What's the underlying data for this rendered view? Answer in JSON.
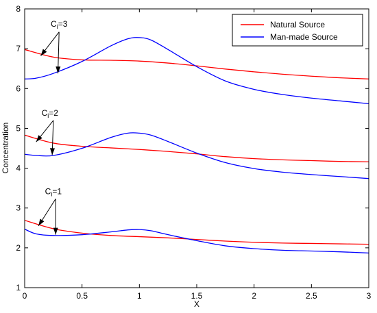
{
  "chart_data": {
    "type": "line",
    "title": "",
    "xlabel": "X",
    "ylabel": "Concentration",
    "xlim": [
      0,
      3
    ],
    "ylim": [
      1,
      8
    ],
    "xticks": [
      0,
      0.5,
      1,
      1.5,
      2,
      2.5,
      3
    ],
    "xtick_labels": [
      "0",
      "0.5",
      "1",
      "1.5",
      "2",
      "2.5",
      "3"
    ],
    "yticks": [
      1,
      2,
      3,
      4,
      5,
      6,
      7,
      8
    ],
    "ytick_labels": [
      "1",
      "2",
      "3",
      "4",
      "5",
      "6",
      "7",
      "8"
    ],
    "grid": false,
    "legend_position": "top-right",
    "legend": [
      {
        "label": "Natural Source",
        "color": "#ff0000"
      },
      {
        "label": "Man-made Source",
        "color": "#0000ff"
      }
    ],
    "series": [
      {
        "name": "Natural Source",
        "group": "Ci=3",
        "color": "#ff0000",
        "x": [
          0,
          0.25,
          0.5,
          0.75,
          1,
          1.25,
          1.5,
          1.75,
          2,
          2.25,
          2.5,
          2.75,
          3
        ],
        "y": [
          6.98,
          6.79,
          6.72,
          6.71,
          6.69,
          6.64,
          6.57,
          6.49,
          6.42,
          6.36,
          6.31,
          6.27,
          6.24
        ]
      },
      {
        "name": "Man-made Source",
        "group": "Ci=3",
        "color": "#0000ff",
        "x": [
          0,
          0.1,
          0.25,
          0.5,
          0.75,
          0.9,
          1,
          1.1,
          1.25,
          1.5,
          1.75,
          2,
          2.25,
          2.5,
          2.75,
          3
        ],
        "y": [
          6.24,
          6.26,
          6.38,
          6.68,
          7.07,
          7.25,
          7.28,
          7.22,
          6.98,
          6.55,
          6.19,
          5.98,
          5.85,
          5.76,
          5.69,
          5.62
        ]
      },
      {
        "name": "Natural Source",
        "group": "Ci=2",
        "color": "#ff0000",
        "x": [
          0,
          0.25,
          0.5,
          0.75,
          1,
          1.25,
          1.5,
          1.75,
          2,
          2.25,
          2.5,
          2.75,
          3
        ],
        "y": [
          4.83,
          4.63,
          4.55,
          4.51,
          4.47,
          4.42,
          4.36,
          4.29,
          4.24,
          4.21,
          4.19,
          4.17,
          4.16
        ]
      },
      {
        "name": "Man-made Source",
        "group": "Ci=2",
        "color": "#0000ff",
        "x": [
          0,
          0.1,
          0.25,
          0.5,
          0.75,
          0.9,
          1,
          1.1,
          1.25,
          1.5,
          1.75,
          2,
          2.25,
          2.5,
          2.75,
          3
        ],
        "y": [
          4.35,
          4.32,
          4.32,
          4.5,
          4.77,
          4.88,
          4.88,
          4.83,
          4.67,
          4.38,
          4.14,
          3.99,
          3.9,
          3.84,
          3.79,
          3.74
        ]
      },
      {
        "name": "Natural Source",
        "group": "Ci=1",
        "color": "#ff0000",
        "x": [
          0,
          0.25,
          0.5,
          0.75,
          1,
          1.25,
          1.5,
          1.75,
          2,
          2.25,
          2.5,
          2.75,
          3
        ],
        "y": [
          2.69,
          2.48,
          2.37,
          2.31,
          2.28,
          2.25,
          2.21,
          2.17,
          2.14,
          2.12,
          2.11,
          2.1,
          2.09
        ]
      },
      {
        "name": "Man-made Source",
        "group": "Ci=1",
        "color": "#0000ff",
        "x": [
          0,
          0.1,
          0.25,
          0.5,
          0.75,
          0.9,
          1,
          1.1,
          1.25,
          1.5,
          1.75,
          2,
          2.25,
          2.5,
          2.75,
          3
        ],
        "y": [
          2.47,
          2.35,
          2.31,
          2.33,
          2.4,
          2.45,
          2.46,
          2.43,
          2.33,
          2.18,
          2.05,
          1.98,
          1.94,
          1.92,
          1.9,
          1.87
        ]
      }
    ],
    "annotations": [
      {
        "base": "C",
        "sub": "i",
        "suffix": "=3",
        "label_at": [
          0.3,
          7.55
        ],
        "arrow_from": [
          0.3,
          7.42
        ],
        "arrow_to": [
          [
            0.14,
            6.82
          ],
          [
            0.29,
            6.38
          ]
        ]
      },
      {
        "base": "C",
        "sub": "i",
        "suffix": "=2",
        "label_at": [
          0.22,
          5.32
        ],
        "arrow_from": [
          0.25,
          5.2
        ],
        "arrow_to": [
          [
            0.1,
            4.66
          ],
          [
            0.24,
            4.33
          ]
        ]
      },
      {
        "base": "C",
        "sub": "i",
        "suffix": "=1",
        "label_at": [
          0.25,
          3.35
        ],
        "arrow_from": [
          0.27,
          3.23
        ],
        "arrow_to": [
          [
            0.12,
            2.55
          ],
          [
            0.27,
            2.33
          ]
        ]
      }
    ]
  }
}
